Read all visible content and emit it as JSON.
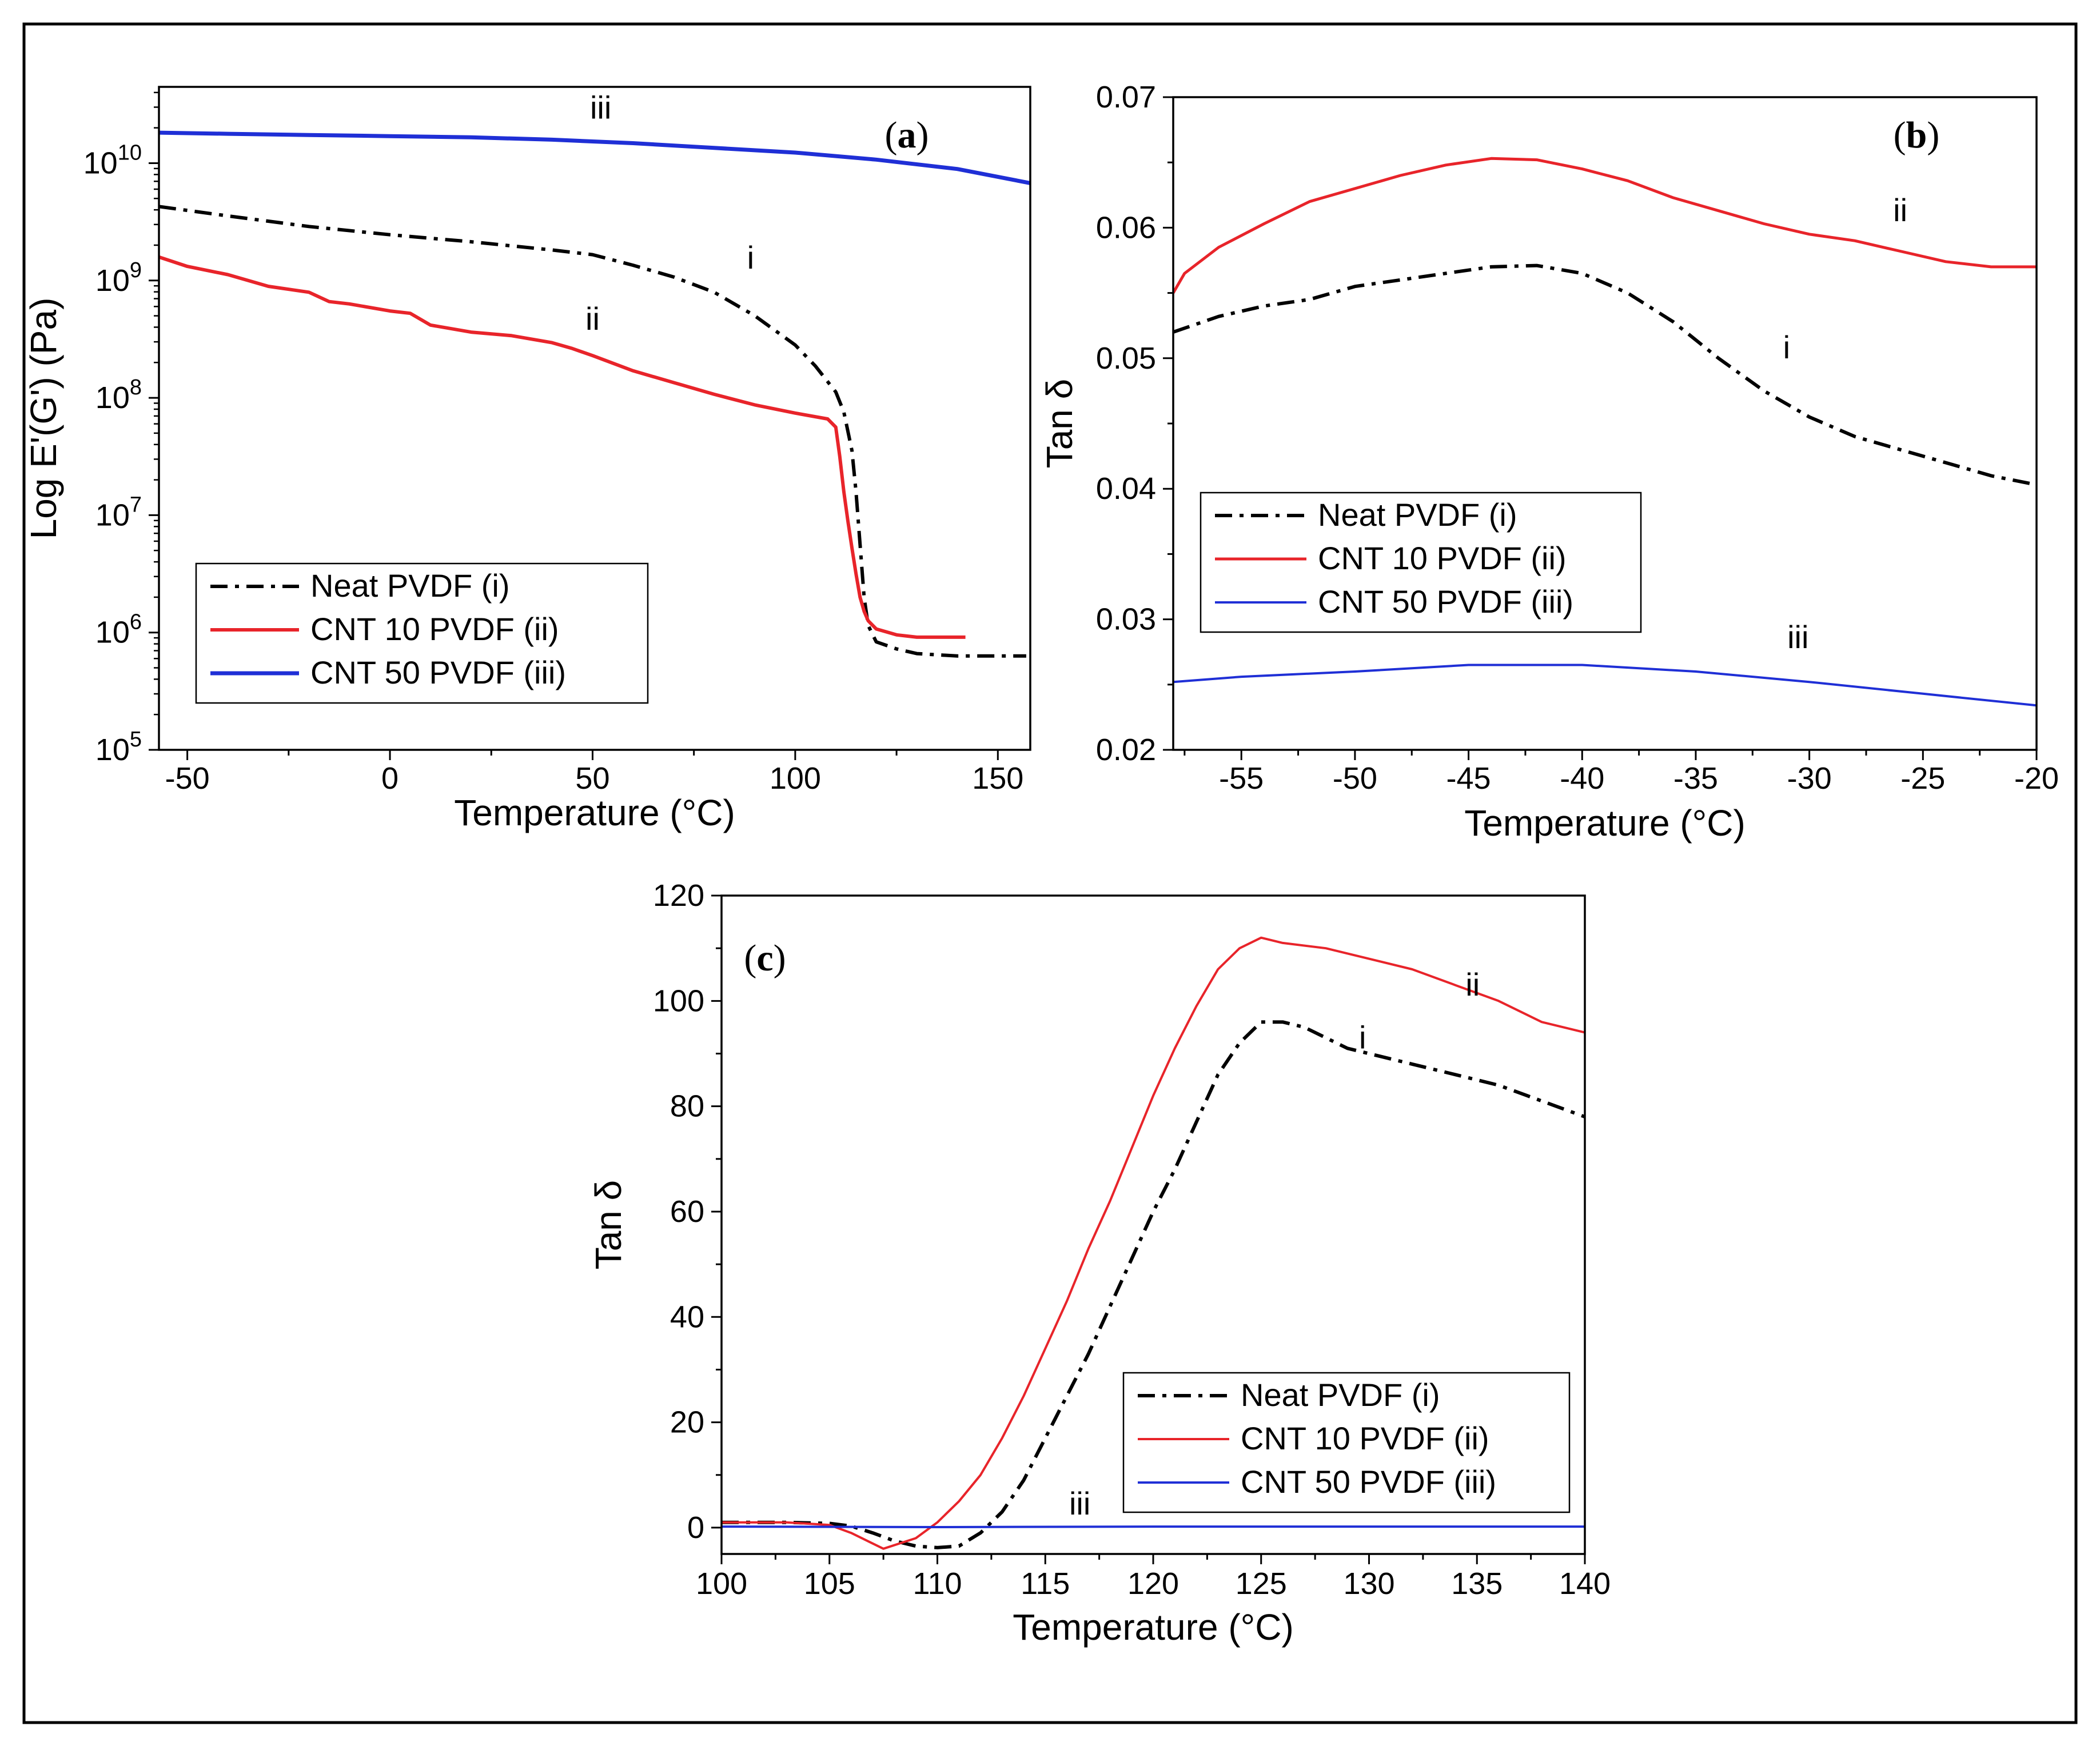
{
  "figure": {
    "background": "#ffffff",
    "frame_color": "#000000"
  },
  "colors": {
    "neat": "#000000",
    "cnt10": "#e8242a",
    "cnt50": "#1f2fd6"
  },
  "chart_data": [
    {
      "id": "a",
      "type": "line",
      "panel_label": "a",
      "xlabel": "Temperature (°C)",
      "ylabel": "Log E'(G') (Pa)",
      "xlim": [
        -57,
        158
      ],
      "ylim": [
        5,
        10.65
      ],
      "yscale": "log",
      "grid": false,
      "legend_position": "bottom-left",
      "x_ticks": [
        -50,
        0,
        50,
        100,
        150
      ],
      "x_tick_labels": [
        "-50",
        "0",
        "50",
        "100",
        "150"
      ],
      "y_ticks": [
        5,
        6,
        7,
        8,
        9,
        10
      ],
      "y_tick_labels": [
        {
          "base": "10",
          "exp": "5"
        },
        {
          "base": "10",
          "exp": "6"
        },
        {
          "base": "10",
          "exp": "7"
        },
        {
          "base": "10",
          "exp": "8"
        },
        {
          "base": "10",
          "exp": "9"
        },
        {
          "base": "10",
          "exp": "10"
        }
      ],
      "series": [
        {
          "key": "neat",
          "name": "Neat PVDF (i)",
          "style": "dashdot",
          "width": 6,
          "x": [
            -57,
            -40,
            -20,
            0,
            20,
            40,
            50,
            60,
            70,
            80,
            90,
            100,
            105,
            110,
            112,
            114,
            115,
            116,
            117,
            118,
            120,
            125,
            130,
            140,
            150,
            157
          ],
          "y": [
            9.63,
            9.55,
            9.46,
            9.39,
            9.33,
            9.26,
            9.22,
            9.13,
            9.03,
            8.9,
            8.7,
            8.45,
            8.27,
            8.05,
            7.88,
            7.55,
            7.2,
            6.75,
            6.3,
            6.06,
            5.92,
            5.86,
            5.82,
            5.8,
            5.8,
            5.8
          ]
        },
        {
          "key": "cnt10",
          "name": "CNT 10 PVDF (ii)",
          "style": "solid",
          "width": 6,
          "x": [
            -57,
            -50,
            -40,
            -30,
            -20,
            -15,
            -10,
            0,
            5,
            10,
            20,
            30,
            40,
            45,
            50,
            60,
            70,
            80,
            90,
            100,
            108,
            110,
            111,
            112,
            113,
            114,
            115,
            116,
            117,
            118,
            120,
            125,
            130,
            135,
            142
          ],
          "y": [
            9.2,
            9.12,
            9.05,
            8.95,
            8.9,
            8.82,
            8.8,
            8.74,
            8.72,
            8.62,
            8.56,
            8.53,
            8.47,
            8.42,
            8.36,
            8.23,
            8.13,
            8.03,
            7.94,
            7.87,
            7.82,
            7.75,
            7.5,
            7.2,
            6.95,
            6.72,
            6.5,
            6.3,
            6.18,
            6.1,
            6.03,
            5.98,
            5.96,
            5.96,
            5.96
          ]
        },
        {
          "key": "cnt50",
          "name": "CNT 50 PVDF (iii)",
          "style": "solid",
          "width": 7,
          "x": [
            -57,
            -40,
            -20,
            0,
            20,
            40,
            60,
            80,
            100,
            120,
            140,
            158
          ],
          "y": [
            10.26,
            10.25,
            10.24,
            10.23,
            10.22,
            10.2,
            10.17,
            10.13,
            10.09,
            10.03,
            9.95,
            9.83
          ]
        }
      ],
      "annotations": [
        {
          "text": "iii",
          "x": 52,
          "y": 10.38
        },
        {
          "text": "i",
          "x": 89,
          "y": 9.1
        },
        {
          "text": "ii",
          "x": 50,
          "y": 8.58
        }
      ]
    },
    {
      "id": "b",
      "type": "line",
      "panel_label": "b",
      "xlabel": "Temperature (°C)",
      "ylabel": "Tan δ",
      "xlim": [
        -58,
        -20
      ],
      "ylim": [
        0.02,
        0.07
      ],
      "grid": false,
      "legend_position": "center-left",
      "x_ticks": [
        -55,
        -50,
        -45,
        -40,
        -35,
        -30,
        -25,
        -20
      ],
      "x_tick_labels": [
        "-55",
        "-50",
        "-45",
        "-40",
        "-35",
        "-30",
        "-25",
        "-20"
      ],
      "y_ticks": [
        0.02,
        0.03,
        0.04,
        0.05,
        0.06,
        0.07
      ],
      "y_tick_labels": [
        "0.02",
        "0.03",
        "0.04",
        "0.05",
        "0.06",
        "0.07"
      ],
      "series": [
        {
          "key": "neat",
          "name": "Neat PVDF (i)",
          "style": "dashdot",
          "width": 6,
          "x": [
            -58,
            -56,
            -54,
            -52,
            -50,
            -48,
            -46,
            -44,
            -42,
            -40,
            -38,
            -36,
            -34,
            -32,
            -30,
            -28,
            -26,
            -24,
            -22,
            -20
          ],
          "y": [
            0.052,
            0.0532,
            0.054,
            0.0545,
            0.0555,
            0.056,
            0.0565,
            0.057,
            0.0571,
            0.0565,
            0.055,
            0.0528,
            0.05,
            0.0475,
            0.0455,
            0.044,
            0.043,
            0.042,
            0.041,
            0.0403
          ]
        },
        {
          "key": "cnt10",
          "name": "CNT 10 PVDF (ii)",
          "style": "solid",
          "width": 5,
          "x": [
            -58,
            -57.5,
            -56,
            -54,
            -52,
            -50,
            -48,
            -46,
            -44,
            -42,
            -40,
            -38,
            -36,
            -34,
            -32,
            -30,
            -28,
            -26,
            -24,
            -22,
            -20
          ],
          "y": [
            0.055,
            0.0565,
            0.0585,
            0.0603,
            0.062,
            0.063,
            0.064,
            0.0648,
            0.0653,
            0.0652,
            0.0645,
            0.0636,
            0.0623,
            0.0613,
            0.0603,
            0.0595,
            0.059,
            0.0582,
            0.0574,
            0.057,
            0.057
          ]
        },
        {
          "key": "cnt50",
          "name": "CNT 50 PVDF (iii)",
          "style": "solid",
          "width": 4,
          "x": [
            -58,
            -55,
            -50,
            -45,
            -40,
            -35,
            -30,
            -25,
            -20
          ],
          "y": [
            0.0252,
            0.0256,
            0.026,
            0.0265,
            0.0265,
            0.026,
            0.0252,
            0.0243,
            0.0234
          ]
        }
      ],
      "annotations": [
        {
          "text": "ii",
          "x": -26,
          "y": 0.0605
        },
        {
          "text": "i",
          "x": -31,
          "y": 0.05
        },
        {
          "text": "iii",
          "x": -30.5,
          "y": 0.0278
        }
      ]
    },
    {
      "id": "c",
      "type": "line",
      "panel_label": "c",
      "xlabel": "Temperature (°C)",
      "ylabel": "Tan δ",
      "xlim": [
        100,
        140
      ],
      "ylim": [
        -5,
        120
      ],
      "grid": false,
      "legend_position": "bottom-right",
      "x_ticks": [
        100,
        105,
        110,
        115,
        120,
        125,
        130,
        135,
        140
      ],
      "x_tick_labels": [
        "100",
        "105",
        "110",
        "115",
        "120",
        "125",
        "130",
        "135",
        "140"
      ],
      "y_ticks": [
        0,
        20,
        40,
        60,
        80,
        100,
        120
      ],
      "y_tick_labels": [
        "0",
        "20",
        "40",
        "60",
        "80",
        "100",
        "120"
      ],
      "series": [
        {
          "key": "neat",
          "name": "Neat PVDF (i)",
          "style": "dashdot",
          "width": 6,
          "x": [
            100,
            103,
            105,
            106,
            107,
            108,
            109,
            110,
            111,
            112,
            113,
            114,
            115,
            116,
            117,
            118,
            119,
            120,
            121,
            122,
            123,
            124,
            125,
            126,
            127,
            128,
            129,
            130,
            132,
            134,
            136,
            138,
            140
          ],
          "y": [
            1,
            1,
            0.8,
            0.3,
            -1,
            -2.5,
            -3.5,
            -3.8,
            -3.5,
            -1,
            3,
            9,
            17,
            25,
            33,
            42,
            51,
            60,
            68,
            77,
            86,
            92,
            96,
            96,
            95,
            93,
            91,
            90,
            88,
            86,
            84,
            81,
            78
          ]
        },
        {
          "key": "cnt10",
          "name": "CNT 10 PVDF (ii)",
          "style": "solid",
          "width": 4,
          "x": [
            100,
            103,
            105,
            106,
            107.5,
            109,
            110,
            111,
            112,
            113,
            114,
            115,
            116,
            117,
            118,
            119,
            120,
            121,
            122,
            123,
            124,
            125,
            126,
            128,
            130,
            132,
            134,
            136,
            138,
            140
          ],
          "y": [
            1,
            1,
            0.5,
            -1,
            -4,
            -2,
            1,
            5,
            10,
            17,
            25,
            34,
            43,
            53,
            62,
            72,
            82,
            91,
            99,
            106,
            110,
            112,
            111,
            110,
            108,
            106,
            103,
            100,
            96,
            94
          ]
        },
        {
          "key": "cnt50",
          "name": "CNT 50 PVDF (iii)",
          "style": "solid",
          "width": 4,
          "x": [
            100,
            110,
            120,
            130,
            140
          ],
          "y": [
            0.2,
            0.1,
            0.2,
            0.2,
            0.2
          ]
        }
      ],
      "annotations": [
        {
          "text": "ii",
          "x": 134.8,
          "y": 101
        },
        {
          "text": "i",
          "x": 129.7,
          "y": 91
        },
        {
          "text": "iii",
          "x": 116.6,
          "y": 2.5
        }
      ]
    }
  ]
}
